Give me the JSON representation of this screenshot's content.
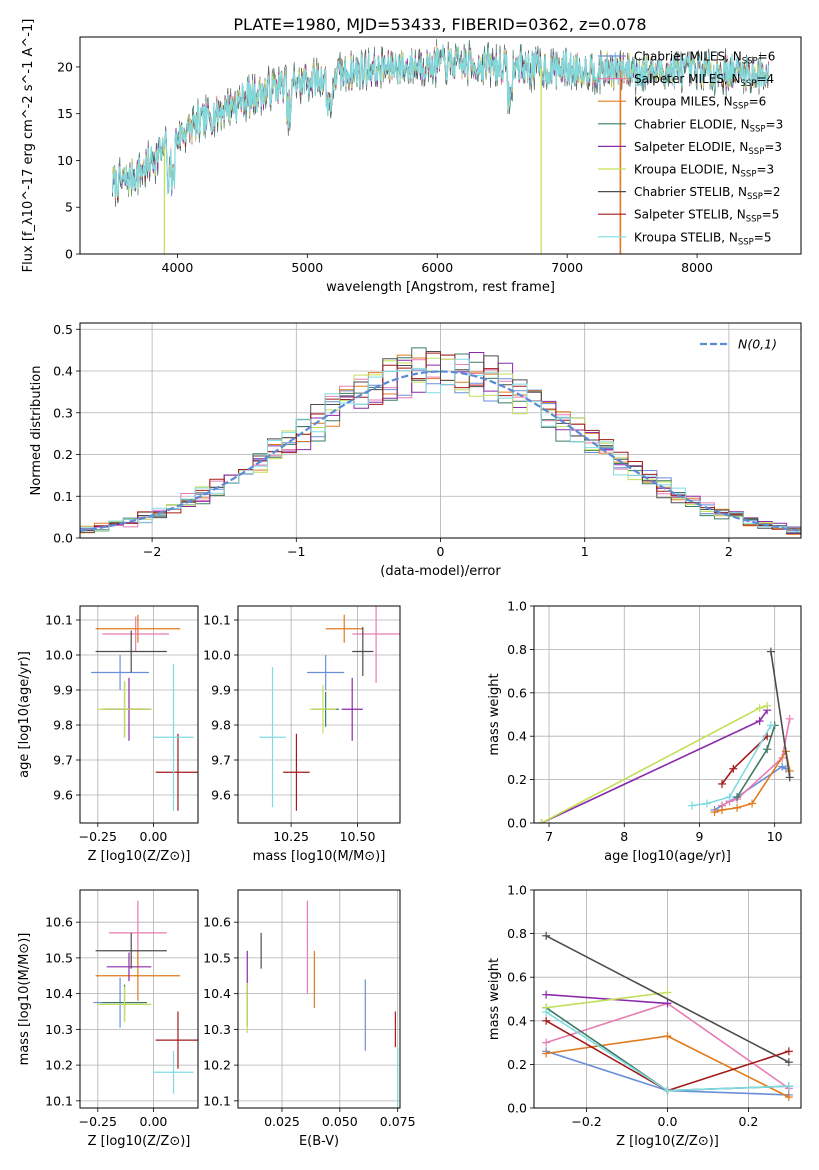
{
  "figure": {
    "title": "PLATE=1980, MJD=53433, FIBERID=0362, z=0.078"
  },
  "colors": {
    "Chabrier MILES": "#6a8fd8",
    "Salpeter MILES": "#e87cb5",
    "Kroupa MILES": "#e07b1f",
    "Chabrier ELODIE": "#3d7a63",
    "Salpeter ELODIE": "#8b2aa8",
    "Kroupa ELODIE": "#c2e05a",
    "Chabrier STELIB": "#4d4d4d",
    "Salpeter STELIB": "#a31a1a",
    "Kroupa STELIB": "#7fdbe0"
  },
  "chart_data": [
    {
      "id": "spectrum",
      "type": "line",
      "xlabel": "wavelength [Angstrom, rest frame]",
      "ylabel": "Flux [f_λ10^-17 erg cm^-2 s^-1 A^-1]",
      "xlim": [
        3250,
        8800
      ],
      "ylim": [
        0,
        23.2
      ],
      "xticks": [
        4000,
        5000,
        6000,
        7000,
        8000
      ],
      "yticks": [
        0,
        5,
        10,
        15,
        20
      ],
      "grid": false,
      "legend_position": "top-right",
      "legend": [
        {
          "label": "Chabrier MILES, N",
          "sub": "SSP",
          "suffix": "=6",
          "model": "Chabrier MILES"
        },
        {
          "label": "Salpeter MILES, N",
          "sub": "SSP",
          "suffix": "=4",
          "model": "Salpeter MILES"
        },
        {
          "label": "Kroupa MILES, N",
          "sub": "SSP",
          "suffix": "=6",
          "model": "Kroupa MILES"
        },
        {
          "label": "Chabrier ELODIE, N",
          "sub": "SSP",
          "suffix": "=3",
          "model": "Chabrier ELODIE"
        },
        {
          "label": "Salpeter ELODIE, N",
          "sub": "SSP",
          "suffix": "=3",
          "model": "Salpeter ELODIE"
        },
        {
          "label": "Kroupa ELODIE, N",
          "sub": "SSP",
          "suffix": "=3",
          "model": "Kroupa ELODIE"
        },
        {
          "label": "Chabrier STELIB, N",
          "sub": "SSP",
          "suffix": "=2",
          "model": "Chabrier STELIB"
        },
        {
          "label": "Salpeter STELIB, N",
          "sub": "SSP",
          "suffix": "=5",
          "model": "Salpeter STELIB"
        },
        {
          "label": "Kroupa STELIB, N",
          "sub": "SSP",
          "suffix": "=5",
          "model": "Kroupa STELIB"
        }
      ],
      "continuum": {
        "x": [
          3500,
          3650,
          3800,
          3950,
          4100,
          4300,
          4500,
          4800,
          5100,
          5400,
          5700,
          6000,
          6300,
          6600,
          6900,
          7200,
          7500,
          7800,
          8100,
          8400,
          8550
        ],
        "y": [
          7.5,
          8.2,
          9.8,
          12.0,
          13.5,
          15.0,
          16.5,
          18.0,
          18.8,
          19.6,
          20.0,
          20.4,
          20.2,
          20.0,
          19.8,
          19.7,
          19.6,
          19.5,
          19.6,
          19.3,
          19.2
        ]
      },
      "edge_drops": [
        {
          "model": "Kroupa ELODIE",
          "x": 3900
        },
        {
          "model": "Kroupa ELODIE",
          "x": 6800
        },
        {
          "model": "Salpeter STELIB",
          "x": 7410
        },
        {
          "model": "Kroupa MILES",
          "x": 7410
        }
      ]
    },
    {
      "id": "residuals",
      "type": "step",
      "xlabel": "(data-model)/error",
      "ylabel": "Normed distribution",
      "xlim": [
        -2.5,
        2.5
      ],
      "ylim": [
        0,
        0.515
      ],
      "xticks": [
        -2,
        -1,
        0,
        1,
        2
      ],
      "xticklabels": [
        "−2",
        "−1",
        "0",
        "1",
        "2"
      ],
      "yticks": [
        0.0,
        0.1,
        0.2,
        0.3,
        0.4,
        0.5
      ],
      "yticklabels": [
        "0.0",
        "0.1",
        "0.2",
        "0.3",
        "0.4",
        "0.5"
      ],
      "grid": true,
      "legend_position": "top-right",
      "legend_label": "N(0,1)",
      "bin_width": 0.1
    },
    {
      "id": "age-vs-Z",
      "type": "errorbar",
      "xlabel": "Z [log10(Z/Z⊙)]",
      "ylabel": "age [log10(age/yr)]",
      "xlim": [
        -0.33,
        0.2
      ],
      "ylim": [
        9.52,
        10.14
      ],
      "xticks": [
        -0.25,
        0.0
      ],
      "xticklabels": [
        "−0.25",
        "0.00"
      ],
      "yticks": [
        9.6,
        9.7,
        9.8,
        9.9,
        10.0,
        10.1
      ],
      "yticklabels": [
        "9.6",
        "9.7",
        "9.8",
        "9.9",
        "10.0",
        "10.1"
      ],
      "grid": true,
      "points": [
        {
          "model": "Chabrier MILES",
          "x": -0.15,
          "y": 9.95,
          "xerr": 0.13,
          "yerr": 0.05
        },
        {
          "model": "Salpeter MILES",
          "x": -0.08,
          "y": 10.06,
          "xerr": 0.15,
          "yerr": 0.05
        },
        {
          "model": "Kroupa MILES",
          "x": -0.07,
          "y": 10.075,
          "xerr": 0.19,
          "yerr": 0.04
        },
        {
          "model": "Chabrier ELODIE",
          "x": -0.13,
          "y": 9.845,
          "xerr": 0.1,
          "yerr": 0.08
        },
        {
          "model": "Salpeter ELODIE",
          "x": -0.11,
          "y": 9.845,
          "xerr": 0.1,
          "yerr": 0.09
        },
        {
          "model": "Kroupa ELODIE",
          "x": -0.13,
          "y": 9.845,
          "xerr": 0.12,
          "yerr": 0.08
        },
        {
          "model": "Chabrier STELIB",
          "x": -0.1,
          "y": 10.01,
          "xerr": 0.16,
          "yerr": 0.06
        },
        {
          "model": "Salpeter STELIB",
          "x": 0.11,
          "y": 9.665,
          "xerr": 0.1,
          "yerr": 0.11
        },
        {
          "model": "Kroupa STELIB",
          "x": 0.09,
          "y": 9.765,
          "xerr": 0.09,
          "yerr": 0.21
        }
      ]
    },
    {
      "id": "age-vs-mass",
      "type": "errorbar",
      "xlabel": "mass [log10(M/M⊙)]",
      "ylabel": "",
      "xlim": [
        10.05,
        10.66
      ],
      "ylim": [
        9.52,
        10.14
      ],
      "xticks": [
        10.25,
        10.5
      ],
      "xticklabels": [
        "10.25",
        "10.50"
      ],
      "yticks": [
        9.6,
        9.7,
        9.8,
        9.9,
        10.0,
        10.1
      ],
      "yticklabels": [
        "9.6",
        "9.7",
        "9.8",
        "9.9",
        "10.0",
        "10.1"
      ],
      "grid": true,
      "points": [
        {
          "model": "Chabrier MILES",
          "x": 10.38,
          "y": 9.95,
          "xerr": 0.07,
          "yerr": 0.05
        },
        {
          "model": "Salpeter MILES",
          "x": 10.57,
          "y": 10.06,
          "xerr": 0.09,
          "yerr": 0.14
        },
        {
          "model": "Kroupa MILES",
          "x": 10.45,
          "y": 10.075,
          "xerr": 0.07,
          "yerr": 0.04
        },
        {
          "model": "Chabrier ELODIE",
          "x": 10.38,
          "y": 9.845,
          "xerr": 0.05,
          "yerr": 0.05
        },
        {
          "model": "Salpeter ELODIE",
          "x": 10.48,
          "y": 9.845,
          "xerr": 0.04,
          "yerr": 0.09
        },
        {
          "model": "Kroupa ELODIE",
          "x": 10.37,
          "y": 9.845,
          "xerr": 0.05,
          "yerr": 0.07
        },
        {
          "model": "Chabrier STELIB",
          "x": 10.52,
          "y": 10.01,
          "xerr": 0.04,
          "yerr": 0.07
        },
        {
          "model": "Salpeter STELIB",
          "x": 10.27,
          "y": 9.665,
          "xerr": 0.05,
          "yerr": 0.11
        },
        {
          "model": "Kroupa STELIB",
          "x": 10.18,
          "y": 9.765,
          "xerr": 0.05,
          "yerr": 0.2
        }
      ]
    },
    {
      "id": "weight-vs-age",
      "type": "line",
      "xlabel": "age [log10(age/yr)]",
      "ylabel": "mass weight",
      "xlim": [
        6.8,
        10.35
      ],
      "ylim": [
        0,
        1.0
      ],
      "xticks": [
        7,
        8,
        9,
        10
      ],
      "xticklabels": [
        "7",
        "8",
        "9",
        "10"
      ],
      "yticks": [
        0.0,
        0.2,
        0.4,
        0.6,
        0.8,
        1.0
      ],
      "yticklabels": [
        "0.0",
        "0.2",
        "0.4",
        "0.6",
        "0.8",
        "1.0"
      ],
      "grid": true,
      "series": [
        {
          "model": "Chabrier MILES",
          "x": [
            9.2,
            9.3,
            9.4,
            9.5,
            10.1,
            10.15
          ],
          "y": [
            0.06,
            0.08,
            0.1,
            0.12,
            0.26,
            0.25
          ]
        },
        {
          "model": "Salpeter MILES",
          "x": [
            9.3,
            9.4,
            9.5,
            10.1,
            10.2
          ],
          "y": [
            0.08,
            0.1,
            0.11,
            0.3,
            0.48
          ]
        },
        {
          "model": "Kroupa MILES",
          "x": [
            9.2,
            9.3,
            9.5,
            9.7,
            10.15,
            10.2
          ],
          "y": [
            0.05,
            0.06,
            0.07,
            0.09,
            0.33,
            0.24
          ]
        },
        {
          "model": "Chabrier ELODIE",
          "x": [
            9.5,
            9.9,
            10.0
          ],
          "y": [
            0.12,
            0.34,
            0.45
          ]
        },
        {
          "model": "Salpeter ELODIE",
          "x": [
            6.9,
            9.8,
            9.9
          ],
          "y": [
            0.0,
            0.47,
            0.52
          ]
        },
        {
          "model": "Kroupa ELODIE",
          "x": [
            6.9,
            9.8,
            9.9
          ],
          "y": [
            0.0,
            0.53,
            0.54
          ]
        },
        {
          "model": "Chabrier STELIB",
          "x": [
            9.95,
            10.2
          ],
          "y": [
            0.79,
            0.21
          ]
        },
        {
          "model": "Salpeter STELIB",
          "x": [
            9.3,
            9.45,
            9.9
          ],
          "y": [
            0.18,
            0.25,
            0.4
          ]
        },
        {
          "model": "Kroupa STELIB",
          "x": [
            8.9,
            9.1,
            9.4,
            9.95
          ],
          "y": [
            0.08,
            0.09,
            0.12,
            0.45
          ]
        }
      ]
    },
    {
      "id": "mass-vs-Z",
      "type": "errorbar",
      "xlabel": "Z [log10(Z/Z⊙)]",
      "ylabel": "mass [log10(M/M⊙)]",
      "xlim": [
        -0.33,
        0.2
      ],
      "ylim": [
        10.08,
        10.69
      ],
      "xticks": [
        -0.25,
        0.0
      ],
      "xticklabels": [
        "−0.25",
        "0.00"
      ],
      "yticks": [
        10.1,
        10.2,
        10.3,
        10.4,
        10.5,
        10.6
      ],
      "yticklabels": [
        "10.1",
        "10.2",
        "10.3",
        "10.4",
        "10.5",
        "10.6"
      ],
      "grid": true,
      "points": [
        {
          "model": "Chabrier MILES",
          "x": -0.15,
          "y": 10.375,
          "xerr": 0.12,
          "yerr": 0.07
        },
        {
          "model": "Salpeter MILES",
          "x": -0.07,
          "y": 10.57,
          "xerr": 0.13,
          "yerr": 0.09
        },
        {
          "model": "Kroupa MILES",
          "x": -0.07,
          "y": 10.45,
          "xerr": 0.19,
          "yerr": 0.07
        },
        {
          "model": "Chabrier ELODIE",
          "x": -0.13,
          "y": 10.375,
          "xerr": 0.1,
          "yerr": 0.05
        },
        {
          "model": "Salpeter ELODIE",
          "x": -0.11,
          "y": 10.475,
          "xerr": 0.1,
          "yerr": 0.04
        },
        {
          "model": "Kroupa ELODIE",
          "x": -0.13,
          "y": 10.37,
          "xerr": 0.12,
          "yerr": 0.05
        },
        {
          "model": "Chabrier STELIB",
          "x": -0.1,
          "y": 10.52,
          "xerr": 0.16,
          "yerr": 0.05
        },
        {
          "model": "Salpeter STELIB",
          "x": 0.11,
          "y": 10.27,
          "xerr": 0.1,
          "yerr": 0.08
        },
        {
          "model": "Kroupa STELIB",
          "x": 0.09,
          "y": 10.18,
          "xerr": 0.09,
          "yerr": 0.06
        }
      ]
    },
    {
      "id": "mass-vs-EBV",
      "type": "errorbar",
      "xlabel": "E(B-V)",
      "ylabel": "",
      "xlim": [
        0.006,
        0.076
      ],
      "ylim": [
        10.08,
        10.69
      ],
      "xticks": [
        0.025,
        0.05,
        0.075
      ],
      "xticklabels": [
        "0.025",
        "0.050",
        "0.075"
      ],
      "yticks": [
        10.1,
        10.2,
        10.3,
        10.4,
        10.5,
        10.6
      ],
      "yticklabels": [
        "10.1",
        "10.2",
        "10.3",
        "10.4",
        "10.5",
        "10.6"
      ],
      "grid": true,
      "points": [
        {
          "model": "Chabrier MILES",
          "x": 0.061,
          "y": 10.34,
          "xerr": 0,
          "yerr": 0.1
        },
        {
          "model": "Salpeter MILES",
          "x": 0.036,
          "y": 10.53,
          "xerr": 0,
          "yerr": 0.13
        },
        {
          "model": "Kroupa MILES",
          "x": 0.039,
          "y": 10.44,
          "xerr": 0,
          "yerr": 0.08
        },
        {
          "model": "Chabrier ELODIE",
          "x": 0.01,
          "y": 10.36,
          "xerr": 0,
          "yerr": 0.05
        },
        {
          "model": "Salpeter ELODIE",
          "x": 0.01,
          "y": 10.46,
          "xerr": 0,
          "yerr": 0.06
        },
        {
          "model": "Kroupa ELODIE",
          "x": 0.01,
          "y": 10.36,
          "xerr": 0,
          "yerr": 0.07
        },
        {
          "model": "Chabrier STELIB",
          "x": 0.016,
          "y": 10.52,
          "xerr": 0,
          "yerr": 0.05
        },
        {
          "model": "Salpeter STELIB",
          "x": 0.074,
          "y": 10.3,
          "xerr": 0,
          "yerr": 0.05
        },
        {
          "model": "Kroupa STELIB",
          "x": 0.075,
          "y": 10.15,
          "xerr": 0,
          "yerr": 0.1
        }
      ]
    },
    {
      "id": "weight-vs-Z",
      "type": "line",
      "xlabel": "Z [log10(Z/Z⊙)]",
      "ylabel": "mass weight",
      "xlim": [
        -0.33,
        0.33
      ],
      "ylim": [
        0,
        1.0
      ],
      "xticks": [
        -0.2,
        0.0,
        0.2
      ],
      "xticklabels": [
        "−0.2",
        "0.0",
        "0.2"
      ],
      "yticks": [
        0.0,
        0.2,
        0.4,
        0.6,
        0.8,
        1.0
      ],
      "yticklabels": [
        "0.0",
        "0.2",
        "0.4",
        "0.6",
        "0.8",
        "1.0"
      ],
      "grid": true,
      "series": [
        {
          "model": "Chabrier MILES",
          "x": [
            -0.3,
            0.0,
            0.3
          ],
          "y": [
            0.26,
            0.08,
            0.06
          ]
        },
        {
          "model": "Salpeter MILES",
          "x": [
            -0.3,
            0.0,
            0.3
          ],
          "y": [
            0.3,
            0.48,
            0.09
          ]
        },
        {
          "model": "Kroupa MILES",
          "x": [
            -0.3,
            0.0,
            0.3
          ],
          "y": [
            0.25,
            0.33,
            0.05
          ]
        },
        {
          "model": "Chabrier ELODIE",
          "x": [
            -0.3,
            0.0,
            0.3
          ],
          "y": [
            0.46,
            0.08,
            0.1
          ]
        },
        {
          "model": "Salpeter ELODIE",
          "x": [
            -0.3,
            0.0
          ],
          "y": [
            0.52,
            0.48
          ]
        },
        {
          "model": "Kroupa ELODIE",
          "x": [
            -0.3,
            0.0
          ],
          "y": [
            0.46,
            0.53
          ]
        },
        {
          "model": "Chabrier STELIB",
          "x": [
            -0.3,
            0.3
          ],
          "y": [
            0.79,
            0.21
          ]
        },
        {
          "model": "Salpeter STELIB",
          "x": [
            -0.3,
            0.0,
            0.3
          ],
          "y": [
            0.4,
            0.08,
            0.26
          ]
        },
        {
          "model": "Kroupa STELIB",
          "x": [
            -0.3,
            0.0,
            0.3
          ],
          "y": [
            0.44,
            0.08,
            0.1
          ]
        }
      ]
    }
  ]
}
